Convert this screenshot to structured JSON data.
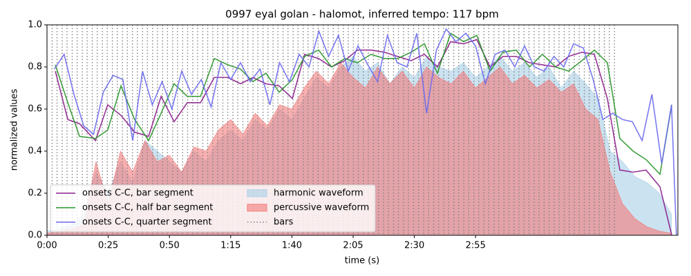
{
  "chart_data": {
    "type": "line",
    "title": "0997 eyal golan - halomot, inferred tempo: 117 bpm",
    "x_label": "time (s)",
    "y_label": "normalized values",
    "xlim": [
      0,
      257.6
    ],
    "ylim": [
      0,
      1
    ],
    "xticks": [
      {
        "value": 0,
        "label": "0:00"
      },
      {
        "value": 25,
        "label": "0:25"
      },
      {
        "value": 50,
        "label": "0:50"
      },
      {
        "value": 75,
        "label": "1:15"
      },
      {
        "value": 100,
        "label": "1:40"
      },
      {
        "value": 125,
        "label": "2:05"
      },
      {
        "value": 150,
        "label": "2:30"
      },
      {
        "value": 175,
        "label": "2:55"
      }
    ],
    "yticks": [
      {
        "value": 0,
        "label": "0.0"
      },
      0.2,
      0.4,
      0.6,
      0.8,
      {
        "value": 1,
        "label": "1.0"
      }
    ],
    "legend": "lower left",
    "series": [
      {
        "name": "onsets C-C, bar segment",
        "type": "line",
        "color": "#8b1c8b",
        "x": [
          3.4,
          8.5,
          13.3,
          19.8,
          24.8,
          30.2,
          35.8,
          41.5,
          46.6,
          51.9,
          57.3,
          62.7,
          68.3,
          73.9,
          79.0,
          84.1,
          89.4,
          94.8,
          100.2,
          105.2,
          110.9,
          116.2,
          121.6,
          126.7,
          132.3,
          137.7,
          143.1,
          148.7,
          154.1,
          159.4,
          164.8,
          170.1,
          175.5,
          180.9,
          186.2,
          191.6,
          197.0,
          202.3,
          207.7,
          213.0,
          218.4,
          223.5,
          228.8,
          233.9,
          239.3,
          244.6,
          250.3,
          255.1
        ],
        "values": [
          0.78,
          0.55,
          0.53,
          0.45,
          0.62,
          0.57,
          0.49,
          0.47,
          0.66,
          0.54,
          0.63,
          0.63,
          0.75,
          0.75,
          0.72,
          0.75,
          0.72,
          0.71,
          0.65,
          0.86,
          0.84,
          0.8,
          0.83,
          0.88,
          0.88,
          0.87,
          0.85,
          0.83,
          0.86,
          0.8,
          0.92,
          0.91,
          0.93,
          0.8,
          0.85,
          0.85,
          0.82,
          0.81,
          0.8,
          0.85,
          0.87,
          0.86,
          0.65,
          0.31,
          0.3,
          0.31,
          0.23,
          0.0
        ]
      },
      {
        "name": "onsets C-C, half bar segment",
        "type": "line",
        "color": "#2a962a",
        "x": [
          3.4,
          8.5,
          13.3,
          19.8,
          24.8,
          30.2,
          35.8,
          41.5,
          46.6,
          51.9,
          57.3,
          62.7,
          68.3,
          73.9,
          79.0,
          84.1,
          89.4,
          94.8,
          100.2,
          105.2,
          110.9,
          116.2,
          121.6,
          126.7,
          132.3,
          137.7,
          143.1,
          148.7,
          154.1,
          159.4,
          164.8,
          170.1,
          175.5,
          180.9,
          186.2,
          191.6,
          197.0,
          202.3,
          207.7,
          213.0,
          218.4,
          223.5,
          228.8,
          233.9,
          239.3,
          244.6,
          250.3,
          255.1
        ],
        "values": [
          0.81,
          0.63,
          0.47,
          0.46,
          0.5,
          0.71,
          0.55,
          0.45,
          0.58,
          0.72,
          0.66,
          0.66,
          0.84,
          0.81,
          0.79,
          0.73,
          0.77,
          0.68,
          0.74,
          0.85,
          0.88,
          0.8,
          0.84,
          0.82,
          0.86,
          0.84,
          0.84,
          0.87,
          0.91,
          0.77,
          0.96,
          0.92,
          0.95,
          0.78,
          0.87,
          0.88,
          0.8,
          0.86,
          0.8,
          0.78,
          0.83,
          0.88,
          0.82,
          0.46,
          0.4,
          0.36,
          0.29,
          0.62
        ]
      },
      {
        "name": "onsets C-C, quarter segment",
        "type": "line",
        "color": "#6b6bf0",
        "x": [
          3,
          7,
          11,
          15,
          19,
          23,
          27,
          31,
          35,
          39,
          43,
          47,
          51,
          55,
          59,
          63,
          67,
          71,
          75,
          79,
          83,
          87,
          91,
          95,
          99,
          103,
          107,
          111,
          115,
          119,
          123,
          127,
          131,
          135,
          139,
          143,
          147,
          151,
          155,
          159,
          163,
          167,
          171,
          175,
          179,
          183,
          187,
          191,
          195,
          199,
          203,
          207,
          211,
          215,
          219,
          223,
          227,
          231,
          235,
          239,
          243,
          247,
          251,
          255,
          257
        ],
        "values": [
          0.79,
          0.86,
          0.67,
          0.52,
          0.48,
          0.68,
          0.76,
          0.74,
          0.45,
          0.78,
          0.62,
          0.73,
          0.6,
          0.78,
          0.67,
          0.74,
          0.61,
          0.82,
          0.74,
          0.82,
          0.73,
          0.79,
          0.62,
          0.82,
          0.73,
          0.86,
          0.8,
          0.97,
          0.85,
          0.95,
          0.78,
          0.9,
          0.81,
          0.73,
          0.95,
          0.82,
          0.8,
          0.96,
          0.58,
          0.88,
          0.98,
          0.92,
          0.96,
          0.9,
          0.72,
          0.86,
          0.88,
          0.8,
          0.9,
          0.8,
          0.78,
          0.85,
          0.8,
          0.91,
          0.89,
          0.74,
          0.55,
          0.58,
          0.55,
          0.54,
          0.45,
          0.67,
          0.34,
          0.62,
          0.0
        ]
      },
      {
        "name": "harmonic waveform",
        "type": "area",
        "color": "#a9cfe6",
        "x": [
          0,
          5,
          10,
          15,
          20,
          25,
          30,
          35,
          40,
          45,
          50,
          55,
          60,
          65,
          70,
          75,
          80,
          85,
          90,
          95,
          100,
          105,
          110,
          115,
          120,
          125,
          130,
          135,
          140,
          145,
          150,
          155,
          160,
          165,
          170,
          175,
          180,
          185,
          190,
          195,
          200,
          205,
          210,
          215,
          220,
          225,
          230,
          235,
          240,
          245,
          250,
          255
        ],
        "values": [
          0.02,
          0.03,
          0.05,
          0.1,
          0.3,
          0.2,
          0.35,
          0.25,
          0.45,
          0.4,
          0.35,
          0.3,
          0.4,
          0.35,
          0.45,
          0.5,
          0.45,
          0.55,
          0.5,
          0.6,
          0.55,
          0.65,
          0.75,
          0.7,
          0.8,
          0.85,
          0.78,
          0.82,
          0.72,
          0.8,
          0.75,
          0.85,
          0.8,
          0.78,
          0.82,
          0.75,
          0.8,
          0.85,
          0.78,
          0.82,
          0.75,
          0.8,
          0.7,
          0.78,
          0.72,
          0.65,
          0.4,
          0.35,
          0.28,
          0.25,
          0.2,
          0.1
        ]
      },
      {
        "name": "percussive waveform",
        "type": "area",
        "color": "#f47a7a",
        "x": [
          0,
          5,
          10,
          15,
          20,
          25,
          30,
          35,
          40,
          45,
          50,
          55,
          60,
          65,
          70,
          75,
          80,
          85,
          90,
          95,
          100,
          105,
          110,
          115,
          120,
          125,
          130,
          135,
          140,
          145,
          150,
          155,
          160,
          165,
          170,
          175,
          180,
          185,
          190,
          195,
          200,
          205,
          210,
          215,
          220,
          225,
          230,
          235,
          240,
          245,
          250,
          255
        ],
        "values": [
          0.01,
          0.02,
          0.03,
          0.05,
          0.35,
          0.15,
          0.4,
          0.3,
          0.45,
          0.35,
          0.38,
          0.3,
          0.42,
          0.4,
          0.5,
          0.55,
          0.48,
          0.58,
          0.52,
          0.62,
          0.6,
          0.7,
          0.78,
          0.72,
          0.82,
          0.75,
          0.7,
          0.8,
          0.72,
          0.78,
          0.7,
          0.8,
          0.75,
          0.72,
          0.78,
          0.7,
          0.75,
          0.8,
          0.72,
          0.76,
          0.7,
          0.74,
          0.68,
          0.72,
          0.6,
          0.55,
          0.3,
          0.15,
          0.08,
          0.04,
          0.02,
          0.01
        ]
      }
    ],
    "bars": {
      "name": "bars",
      "color": "#808080",
      "x": [
        0,
        2.1,
        4.1,
        6.2,
        8.2,
        10.3,
        12.3,
        14.4,
        16.4,
        18.5,
        20.5,
        22.6,
        24.6,
        26.7,
        28.7,
        30.8,
        32.8,
        34.9,
        36.9,
        39.0,
        41.0,
        43.1,
        45.1,
        47.2,
        49.2,
        51.3,
        53.3,
        55.4,
        57.4,
        59.5,
        61.5,
        63.6,
        65.6,
        67.7,
        69.7,
        71.8,
        73.8,
        75.9,
        77.9,
        80.0,
        82.0,
        84.1,
        86.1,
        88.2,
        90.2,
        92.3,
        94.3,
        96.4,
        98.4,
        100.5,
        102.5,
        104.6,
        106.6,
        108.7,
        110.7,
        112.8,
        114.8,
        116.9,
        118.9,
        121.0,
        123.0,
        125.1,
        127.1,
        129.2,
        131.2,
        133.3,
        135.3,
        137.4,
        139.4,
        141.5,
        143.5,
        145.6,
        147.6,
        149.7,
        151.7,
        153.8,
        155.8,
        157.9,
        159.9,
        162.0,
        164.0,
        166.1,
        168.1,
        170.2,
        172.2,
        174.3,
        176.3,
        178.4,
        180.4,
        182.5,
        184.5,
        186.6,
        188.6,
        190.7,
        192.7,
        194.8,
        196.8,
        198.9,
        200.9,
        203.0,
        205.0,
        207.1,
        209.1,
        211.2,
        213.2,
        215.3,
        217.3,
        219.4,
        221.4,
        223.5,
        225.5,
        227.6,
        229.6,
        231.7
      ]
    }
  }
}
